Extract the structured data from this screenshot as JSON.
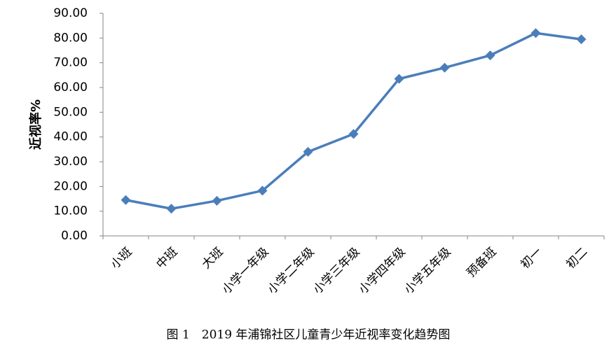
{
  "chart_data": {
    "type": "line",
    "y_label": "近视率%",
    "caption": "图 1　2019 年浦锦社区儿童青少年近视率变化趋势图",
    "categories": [
      "小班",
      "中班",
      "大班",
      "小学一年级",
      "小学二年级",
      "小学三年级",
      "小学四年级",
      "小学五年级",
      "预备班",
      "初一",
      "初二"
    ],
    "values": [
      14.5,
      11.0,
      14.2,
      18.3,
      34.0,
      41.2,
      63.5,
      68.0,
      73.0,
      82.0,
      79.5
    ],
    "color": "#4a7ebb",
    "marker": "diamond",
    "ylim": [
      0,
      90
    ],
    "yticks": [
      {
        "value": 0,
        "label": "0.00"
      },
      {
        "value": 10,
        "label": "10.00"
      },
      {
        "value": 20,
        "label": "20.00"
      },
      {
        "value": 30,
        "label": "30.00"
      },
      {
        "value": 40,
        "label": "40.00"
      },
      {
        "value": 50,
        "label": "50.00"
      },
      {
        "value": 60,
        "label": "60.00"
      },
      {
        "value": 70,
        "label": "70.00"
      },
      {
        "value": 80,
        "label": "80.00"
      },
      {
        "value": 90,
        "label": "90.00"
      }
    ],
    "grid": false
  }
}
